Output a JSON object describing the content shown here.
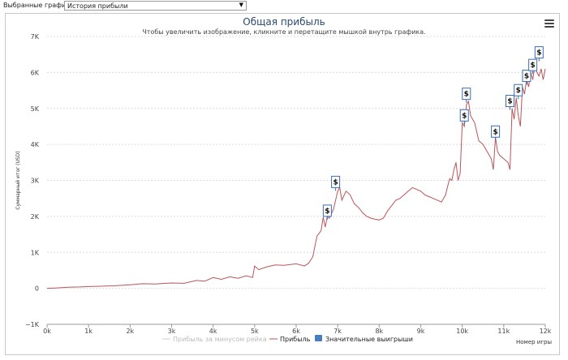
{
  "topbar": {
    "label": "Выбранные графики:",
    "selected": "История прибыли",
    "arrow": "▼"
  },
  "header": {
    "title": "Общая прибыль",
    "subtitle": "Чтобы увеличить изображение, кликните и перетащите мышкой внутрь графика."
  },
  "icons": {
    "menu": "hamburger-menu-icon",
    "marker": "dollar-flag-icon"
  },
  "colors": {
    "profit_line": "#b8555c",
    "minus_rake_line": "#d9a0a5",
    "marker_border": "#3a6db0",
    "grid": "#dcdcdc",
    "title": "#2b4a6b",
    "legend_square": "#4a7cc2"
  },
  "chart_data": {
    "type": "line",
    "title": "Общая прибыль",
    "subtitle": "Чтобы увеличить изображение, кликните и перетащите мышкой внутрь графика.",
    "xlabel": "Номер игры",
    "ylabel": "Суммарный итог (USD)",
    "xlim": [
      0,
      12000
    ],
    "ylim": [
      -1000,
      7000
    ],
    "x_ticks": [
      0,
      1000,
      2000,
      3000,
      4000,
      5000,
      6000,
      7000,
      8000,
      9000,
      10000,
      11000,
      12000
    ],
    "x_tick_labels": [
      "0k",
      "1k",
      "2k",
      "3k",
      "4k",
      "5k",
      "6k",
      "7k",
      "8k",
      "9k",
      "10k",
      "11k",
      "12k"
    ],
    "y_ticks": [
      -1000,
      0,
      1000,
      2000,
      3000,
      4000,
      5000,
      6000,
      7000
    ],
    "y_tick_labels": [
      "−1K",
      "0",
      "1K",
      "2K",
      "3K",
      "4K",
      "5K",
      "6K",
      "7K"
    ],
    "grid": true,
    "legend_placement": "bottom-center",
    "series": [
      {
        "name": "Прибыль за минусом рейка",
        "visible": false,
        "x": [],
        "y": []
      },
      {
        "name": "Прибыль",
        "visible": true,
        "x": [
          0,
          200,
          500,
          800,
          1000,
          1300,
          1600,
          2000,
          2300,
          2600,
          3000,
          3300,
          3600,
          3800,
          4000,
          4200,
          4400,
          4600,
          4800,
          4950,
          5000,
          5100,
          5300,
          5500,
          5700,
          6000,
          6200,
          6300,
          6400,
          6500,
          6600,
          6650,
          6700,
          6750,
          6800,
          6900,
          7000,
          7050,
          7100,
          7200,
          7300,
          7400,
          7500,
          7600,
          7700,
          7800,
          7900,
          8000,
          8100,
          8200,
          8300,
          8400,
          8500,
          8600,
          8700,
          8800,
          8900,
          9000,
          9100,
          9200,
          9300,
          9400,
          9500,
          9600,
          9650,
          9700,
          9750,
          9800,
          9850,
          9900,
          9950,
          10000,
          10050,
          10100,
          10150,
          10200,
          10300,
          10400,
          10500,
          10600,
          10700,
          10750,
          10800,
          10850,
          10900,
          11000,
          11100,
          11150,
          11200,
          11250,
          11300,
          11350,
          11400,
          11450,
          11500,
          11550,
          11600,
          11650,
          11700,
          11750,
          11800,
          11850,
          11900,
          11950,
          12000
        ],
        "y": [
          0,
          10,
          30,
          40,
          50,
          60,
          70,
          100,
          130,
          120,
          150,
          140,
          220,
          200,
          300,
          250,
          320,
          280,
          350,
          300,
          620,
          520,
          600,
          650,
          640,
          680,
          620,
          700,
          880,
          1450,
          1600,
          1980,
          1700,
          2000,
          1950,
          2200,
          2700,
          2800,
          2450,
          2700,
          2600,
          2350,
          2250,
          2100,
          2000,
          1950,
          1920,
          1900,
          1950,
          2150,
          2300,
          2450,
          2500,
          2600,
          2700,
          2800,
          2750,
          2700,
          2600,
          2550,
          2500,
          2450,
          2400,
          2600,
          2850,
          3050,
          3000,
          3300,
          3500,
          3000,
          3200,
          4600,
          4500,
          5100,
          5200,
          4800,
          4600,
          4100,
          4000,
          3800,
          3600,
          3300,
          4200,
          3800,
          3700,
          3600,
          3500,
          3300,
          5000,
          4700,
          5300,
          4800,
          4500,
          5600,
          5400,
          5800,
          5600,
          6000,
          5800,
          6200,
          6000,
          5900,
          6100,
          5800,
          6100
        ]
      }
    ],
    "markers": {
      "name": "Значительные выигрыши",
      "symbol": "$",
      "x": [
        6750,
        6950,
        10050,
        10100,
        10800,
        11150,
        11350,
        11550,
        11700,
        11850
      ],
      "y": [
        2000,
        2800,
        4650,
        5250,
        4200,
        5050,
        5350,
        5750,
        6050,
        6400
      ]
    }
  },
  "legend": {
    "items": [
      {
        "label": "Прибыль за минусом рейка",
        "enabled": false
      },
      {
        "label": "Прибыль",
        "enabled": true
      },
      {
        "label": "Значительные выигрыши",
        "enabled": true
      }
    ]
  }
}
